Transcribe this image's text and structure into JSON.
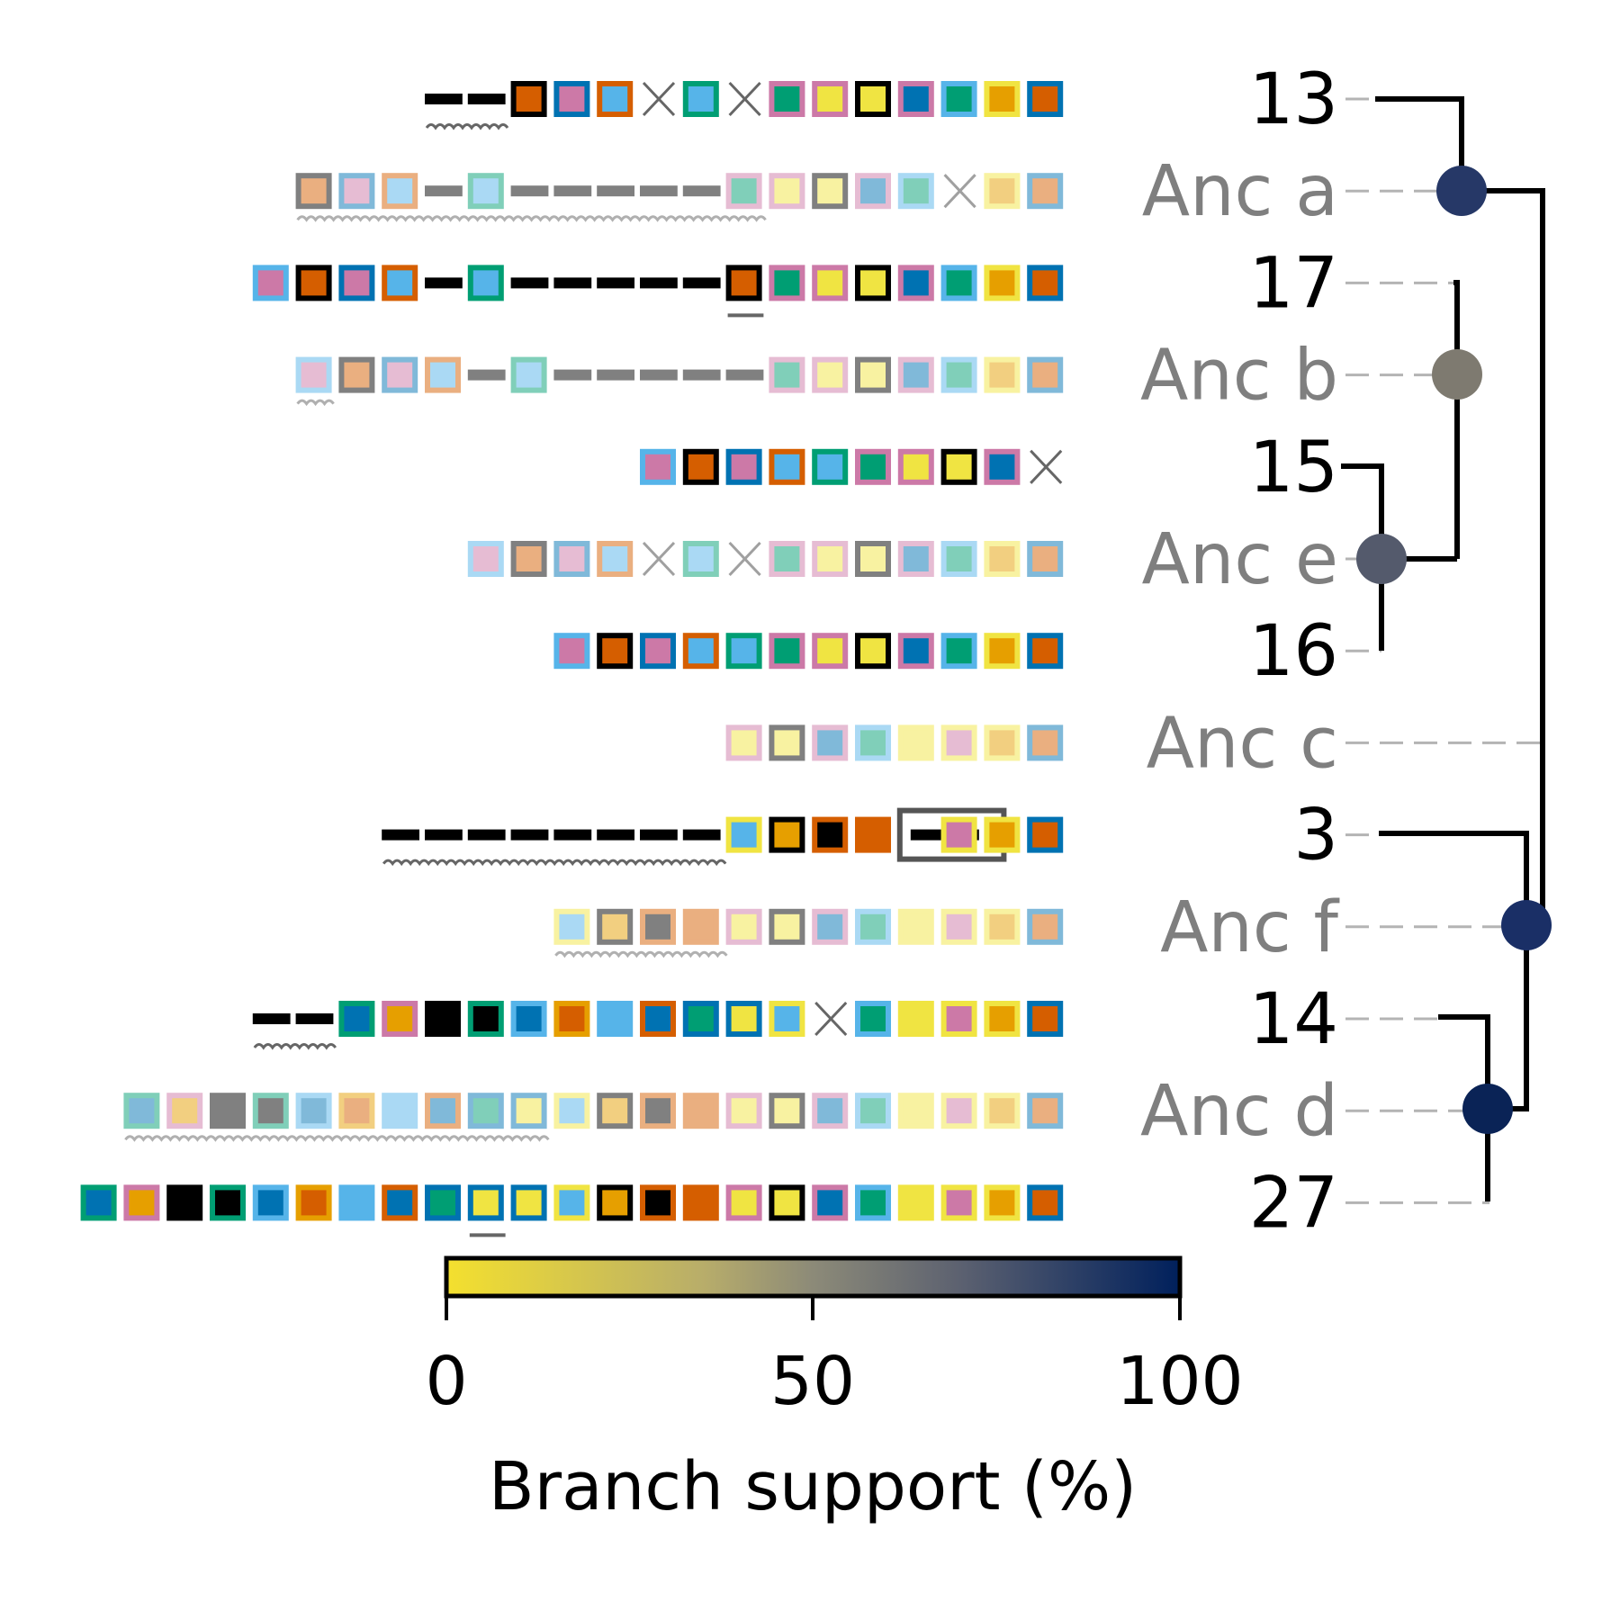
{
  "palette": {
    "black": "#000000",
    "orange": "#E69F00",
    "skyblue": "#56B4E9",
    "green": "#009E73",
    "yellow": "#F0E442",
    "blue": "#0072B2",
    "vermillion": "#D55E00",
    "pink": "#CC79A7",
    "gray": "#808080"
  },
  "light_palette": {
    "vermillion": "#EAAF80",
    "pink": "#E6BCD3",
    "skyblue": "#AAD9F4",
    "green": "#80CFB9",
    "blue": "#80B9D9",
    "yellow": "#F8F2A1",
    "orange": "#F2CF80",
    "gray": "#808080",
    "black": "#808080"
  },
  "rows": [
    {
      "id": "row-13",
      "label": "13",
      "ancestral": false,
      "items": [
        "gap",
        "gap",
        "black/vermillion",
        "blue/pink",
        "vermillion/skyblue",
        "x",
        "green/skyblue",
        "x",
        "pink/green",
        "pink/yellow",
        "black/yellow",
        "pink/blue",
        "skyblue/green",
        "yellow/orange",
        "blue/vermillion"
      ],
      "underline": {
        "start": 0,
        "end": 1,
        "style": "wavy"
      }
    },
    {
      "id": "row-anc-a",
      "label": "Anc a",
      "ancestral": true,
      "items": [
        "gray/vermillion",
        "blue/pink",
        "vermillion/skyblue",
        "gap",
        "green/skyblue",
        "gap",
        "gap",
        "gap",
        "gap",
        "gap",
        "pink/green",
        "pink/yellow",
        "gray/yellow",
        "pink/blue",
        "skyblue/green",
        "x",
        "yellow/orange",
        "blue/vermillion"
      ],
      "underline": {
        "start": 0,
        "end": 10,
        "style": "wavy"
      }
    },
    {
      "id": "row-17",
      "label": "17",
      "ancestral": false,
      "items": [
        "skyblue/pink",
        "black/vermillion",
        "blue/pink",
        "vermillion/skyblue",
        "gap",
        "green/skyblue",
        "gap",
        "gap",
        "gap",
        "gap",
        "gap",
        "black/vermillion",
        "pink/green",
        "pink/yellow",
        "black/yellow",
        "pink/blue",
        "skyblue/green",
        "yellow/orange",
        "blue/vermillion"
      ],
      "underline": {
        "start": 11,
        "end": 11,
        "style": "straight"
      }
    },
    {
      "id": "row-anc-b",
      "label": "Anc b",
      "ancestral": true,
      "items": [
        "skyblue/pink",
        "gray/vermillion",
        "blue/pink",
        "vermillion/skyblue",
        "gap",
        "green/skyblue",
        "gap",
        "gap",
        "gap",
        "gap",
        "gap",
        "pink/green",
        "pink/yellow",
        "gray/yellow",
        "pink/blue",
        "skyblue/green",
        "yellow/orange",
        "blue/vermillion"
      ],
      "underline": {
        "start": 0,
        "end": 0,
        "style": "wavy"
      }
    },
    {
      "id": "row-15",
      "label": "15",
      "ancestral": false,
      "items": [
        "skyblue/pink",
        "black/vermillion",
        "blue/pink",
        "vermillion/skyblue",
        "green/skyblue",
        "pink/green",
        "pink/yellow",
        "black/yellow",
        "pink/blue",
        "x"
      ],
      "underline": null
    },
    {
      "id": "row-anc-e",
      "label": "Anc e",
      "ancestral": true,
      "items": [
        "skyblue/pink",
        "gray/vermillion",
        "blue/pink",
        "vermillion/skyblue",
        "x",
        "green/skyblue",
        "x",
        "pink/green",
        "pink/yellow",
        "gray/yellow",
        "pink/blue",
        "skyblue/green",
        "yellow/orange",
        "blue/vermillion"
      ],
      "underline": null
    },
    {
      "id": "row-16",
      "label": "16",
      "ancestral": false,
      "items": [
        "skyblue/pink",
        "black/vermillion",
        "blue/pink",
        "vermillion/skyblue",
        "green/skyblue",
        "pink/green",
        "pink/yellow",
        "black/yellow",
        "pink/blue",
        "skyblue/green",
        "yellow/orange",
        "blue/vermillion"
      ],
      "underline": null
    },
    {
      "id": "row-anc-c",
      "label": "Anc c",
      "ancestral": true,
      "items": [
        "pink/yellow",
        "gray/yellow",
        "pink/blue",
        "skyblue/green",
        "yellow/yellow",
        "yellow/pink",
        "yellow/orange",
        "blue/vermillion"
      ],
      "underline": null
    },
    {
      "id": "row-3",
      "label": "3",
      "ancestral": false,
      "items": [
        "gap",
        "gap",
        "gap",
        "gap",
        "gap",
        "gap",
        "gap",
        "gap",
        "yellow/skyblue",
        "black/orange",
        "vermillion/black",
        "vermillion/vermillion",
        "box",
        "yellow/pink",
        "yellow/orange",
        "blue/vermillion"
      ],
      "underline": {
        "start": 0,
        "end": 7,
        "style": "wavy"
      }
    },
    {
      "id": "row-anc-f",
      "label": "Anc f",
      "ancestral": true,
      "items": [
        "yellow/skyblue",
        "gray/orange",
        "vermillion/black",
        "vermillion/vermillion",
        "pink/yellow",
        "gray/yellow",
        "pink/blue",
        "skyblue/green",
        "yellow/yellow",
        "yellow/pink",
        "yellow/orange",
        "blue/vermillion"
      ],
      "underline": {
        "start": 0,
        "end": 3,
        "style": "wavy"
      }
    },
    {
      "id": "row-14",
      "label": "14",
      "ancestral": false,
      "items": [
        "gap",
        "gap",
        "green/blue",
        "pink/orange",
        "black/black",
        "green/black",
        "skyblue/blue",
        "orange/vermillion",
        "skyblue/skyblue",
        "vermillion/blue",
        "blue/green",
        "blue/yellow",
        "yellow/skyblue",
        "x",
        "skyblue/green",
        "yellow/yellow",
        "yellow/pink",
        "yellow/orange",
        "blue/vermillion"
      ],
      "underline": {
        "start": 0,
        "end": 1,
        "style": "wavy"
      }
    },
    {
      "id": "row-anc-d",
      "label": "Anc d",
      "ancestral": true,
      "items": [
        "green/blue",
        "pink/orange",
        "black/black",
        "green/black",
        "skyblue/blue",
        "orange/vermillion",
        "skyblue/skyblue",
        "vermillion/blue",
        "blue/green",
        "blue/yellow",
        "yellow/skyblue",
        "gray/orange",
        "vermillion/black",
        "vermillion/vermillion",
        "pink/yellow",
        "gray/yellow",
        "pink/blue",
        "skyblue/green",
        "yellow/yellow",
        "yellow/pink",
        "yellow/orange",
        "blue/vermillion"
      ],
      "underline": {
        "start": 0,
        "end": 9,
        "style": "wavy"
      }
    },
    {
      "id": "row-27",
      "label": "27",
      "ancestral": false,
      "items": [
        "green/blue",
        "pink/orange",
        "black/black",
        "green/black",
        "skyblue/blue",
        "orange/vermillion",
        "skyblue/skyblue",
        "vermillion/blue",
        "blue/green",
        "blue/yellow",
        "blue/yellow",
        "yellow/skyblue",
        "black/orange",
        "vermillion/black",
        "vermillion/vermillion",
        "pink/yellow",
        "black/yellow",
        "pink/blue",
        "skyblue/green",
        "yellow/yellow",
        "yellow/pink",
        "yellow/orange",
        "blue/vermillion"
      ],
      "underline": {
        "start": 9,
        "end": 9,
        "style": "straight"
      }
    }
  ],
  "nodes": [
    {
      "name": "anc-a",
      "support": 92
    },
    {
      "name": "anc-b",
      "support": 45
    },
    {
      "name": "anc-e",
      "support": 72
    },
    {
      "name": "anc-f",
      "support": 95
    },
    {
      "name": "anc-d",
      "support": 100
    }
  ],
  "colorbar": {
    "label": "Branch support (%)",
    "ticks": [
      "0",
      "50",
      "100"
    ],
    "tick_values": [
      0,
      50,
      100
    ],
    "range": [
      0,
      100
    ],
    "colors": [
      "#F4E02E",
      "#9C9A7B",
      "#5C6170",
      "#00205C"
    ]
  }
}
